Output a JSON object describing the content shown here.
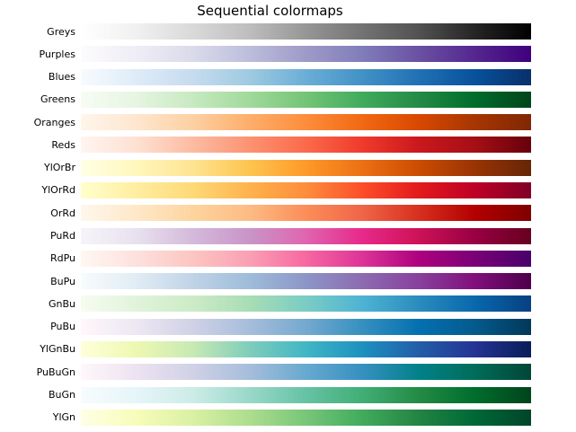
{
  "figure": {
    "title": "Sequential colormaps"
  },
  "chart_data": {
    "type": "heatmap",
    "title": "Sequential colormaps",
    "xlabel": "",
    "ylabel": "",
    "legend": "none",
    "grid": false,
    "rows": [
      {
        "label": "Greys",
        "gradient": [
          "#ffffff",
          "#f0f0f0",
          "#d9d9d9",
          "#bdbdbd",
          "#969696",
          "#737373",
          "#525252",
          "#252525",
          "#000000"
        ]
      },
      {
        "label": "Purples",
        "gradient": [
          "#fcfbfd",
          "#efedf5",
          "#dadaeb",
          "#bcbddc",
          "#9e9ac8",
          "#807dba",
          "#6a51a3",
          "#54278f",
          "#3f007d"
        ]
      },
      {
        "label": "Blues",
        "gradient": [
          "#f7fbff",
          "#deebf7",
          "#c6dbef",
          "#9ecae1",
          "#6baed6",
          "#4292c6",
          "#2171b5",
          "#08519c",
          "#08306b"
        ]
      },
      {
        "label": "Greens",
        "gradient": [
          "#f7fcf5",
          "#e5f5e0",
          "#c7e9c0",
          "#a1d99b",
          "#74c476",
          "#41ab5d",
          "#238b45",
          "#006d2c",
          "#00441b"
        ]
      },
      {
        "label": "Oranges",
        "gradient": [
          "#fff5eb",
          "#fee6ce",
          "#fdd0a2",
          "#fdae6b",
          "#fd8d3c",
          "#f16913",
          "#d94801",
          "#a63603",
          "#7f2704"
        ]
      },
      {
        "label": "Reds",
        "gradient": [
          "#fff5f0",
          "#fee0d2",
          "#fcbba1",
          "#fc9272",
          "#fb6a4a",
          "#ef3b2c",
          "#cb181d",
          "#a50f15",
          "#67000d"
        ]
      },
      {
        "label": "YlOrBr",
        "gradient": [
          "#ffffe5",
          "#fff7bc",
          "#fee391",
          "#fec44f",
          "#fe9929",
          "#ec7014",
          "#cc4c02",
          "#993404",
          "#662506"
        ]
      },
      {
        "label": "YlOrRd",
        "gradient": [
          "#ffffcc",
          "#ffeda0",
          "#fed976",
          "#feb24c",
          "#fd8d3c",
          "#fc4e2a",
          "#e31a1c",
          "#bd0026",
          "#800026"
        ]
      },
      {
        "label": "OrRd",
        "gradient": [
          "#fff7ec",
          "#fee8c8",
          "#fdd49e",
          "#fdbb84",
          "#fc8d59",
          "#ef6548",
          "#d7301f",
          "#b30000",
          "#7f0000"
        ]
      },
      {
        "label": "PuRd",
        "gradient": [
          "#f7f4f9",
          "#e7e1ef",
          "#d4b9da",
          "#c994c7",
          "#df65b0",
          "#e7298a",
          "#ce1256",
          "#980043",
          "#67001f"
        ]
      },
      {
        "label": "RdPu",
        "gradient": [
          "#fff7f3",
          "#fde0dd",
          "#fcc5c0",
          "#fa9fb5",
          "#f768a1",
          "#dd3497",
          "#ae017e",
          "#7a0177",
          "#49006a"
        ]
      },
      {
        "label": "BuPu",
        "gradient": [
          "#f7fcfd",
          "#e0ecf4",
          "#bfd3e6",
          "#9ebcda",
          "#8c96c6",
          "#8c6bb1",
          "#88419d",
          "#810f7c",
          "#4d004b"
        ]
      },
      {
        "label": "GnBu",
        "gradient": [
          "#f7fcf0",
          "#e0f3db",
          "#ccebc5",
          "#a8ddb5",
          "#7bccc4",
          "#4eb3d3",
          "#2b8cbe",
          "#0868ac",
          "#084081"
        ]
      },
      {
        "label": "PuBu",
        "gradient": [
          "#fff7fb",
          "#ece7f2",
          "#d0d1e6",
          "#a6bddb",
          "#74a9cf",
          "#3690c0",
          "#0570b0",
          "#045a8d",
          "#023858"
        ]
      },
      {
        "label": "YlGnBu",
        "gradient": [
          "#ffffd9",
          "#edf8b1",
          "#c7e9b4",
          "#7fcdbb",
          "#41b6c4",
          "#1d91c0",
          "#225ea8",
          "#253494",
          "#081d58"
        ]
      },
      {
        "label": "PuBuGn",
        "gradient": [
          "#fff7fb",
          "#ece2f0",
          "#d0d1e6",
          "#a6bddb",
          "#67a9cf",
          "#3690c0",
          "#02818a",
          "#016c59",
          "#014636"
        ]
      },
      {
        "label": "BuGn",
        "gradient": [
          "#f7fcfd",
          "#e5f5f9",
          "#ccece6",
          "#99d8c9",
          "#66c2a4",
          "#41ae76",
          "#238b45",
          "#006d2c",
          "#00441b"
        ]
      },
      {
        "label": "YlGn",
        "gradient": [
          "#ffffe5",
          "#f7fcb9",
          "#d9f0a3",
          "#addd8e",
          "#78c679",
          "#41ab5d",
          "#238443",
          "#006837",
          "#004529"
        ]
      }
    ]
  }
}
